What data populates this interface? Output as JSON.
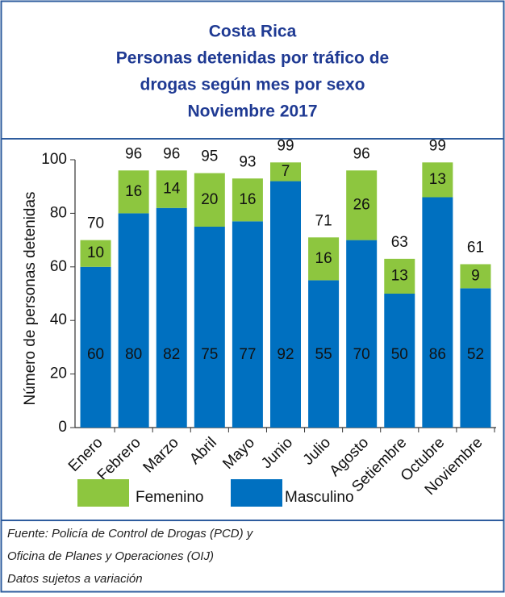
{
  "chart_data": {
    "type": "stacked-bar",
    "title": [
      "Costa Rica",
      "Personas detenidas  por tráfico de",
      "drogas según mes por sexo",
      "Noviembre 2017"
    ],
    "y_label": "Número de personas detenidas",
    "categories": [
      "Enero",
      "Febrero",
      "Marzo",
      "Abril",
      "Mayo",
      "Junio",
      "Julio",
      "Agosto",
      "Setiembre",
      "Octubre",
      "Noviembre"
    ],
    "series": [
      {
        "name": "Masculino",
        "color": "#0070c0",
        "values": [
          60,
          80,
          82,
          75,
          77,
          92,
          55,
          70,
          50,
          86,
          52
        ]
      },
      {
        "name": "Femenino",
        "color": "#8dc63f",
        "values": [
          10,
          16,
          14,
          20,
          16,
          7,
          16,
          26,
          13,
          13,
          9
        ]
      }
    ],
    "totals": [
      70,
      96,
      96,
      95,
      93,
      99,
      71,
      96,
      63,
      99,
      61
    ],
    "ylim": [
      0,
      100
    ],
    "yticks": [
      0,
      20,
      40,
      60,
      80,
      100
    ]
  },
  "footer": [
    "Fuente: Policía de Control de Drogas (PCD) y",
    "Oficina de Planes y Operaciones (OIJ)",
    "Datos sujetos a variación"
  ]
}
